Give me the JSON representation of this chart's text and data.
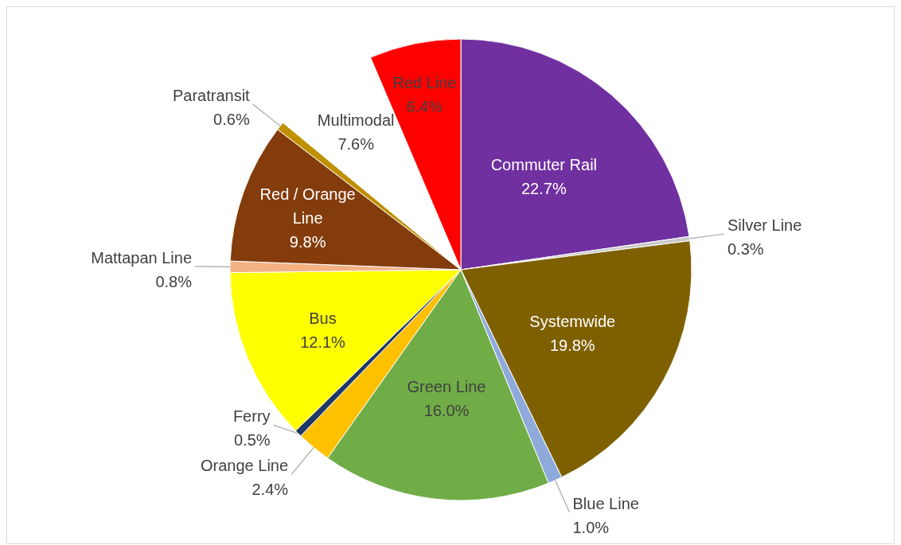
{
  "chart_data": {
    "type": "pie",
    "categories": [
      "Commuter Rail",
      "Silver Line",
      "Systemwide",
      "Blue Line",
      "Green Line",
      "Orange Line",
      "Ferry",
      "Bus",
      "Mattapan Line",
      "Red / Orange Line",
      "Paratransit",
      "Multimodal",
      "Red Line"
    ],
    "values": [
      22.7,
      0.3,
      19.8,
      1.0,
      16.0,
      2.4,
      0.5,
      12.1,
      0.8,
      9.8,
      0.6,
      7.6,
      6.4
    ],
    "value_labels": [
      "22.7%",
      "0.3%",
      "19.8%",
      "1.0%",
      "16.0%",
      "2.4%",
      "0.5%",
      "12.1%",
      "0.8%",
      "9.8%",
      "0.6%",
      "7.6%",
      "6.4%"
    ],
    "colors": [
      "#7030a0",
      "#c9c9c9",
      "#7f6000",
      "#8eaadb",
      "#70ad47",
      "#ffc000",
      "#1f3864",
      "#ffff00",
      "#f4b183",
      "#843c0c",
      "#bf9000",
      "#ffffff",
      "#ff0000"
    ]
  }
}
